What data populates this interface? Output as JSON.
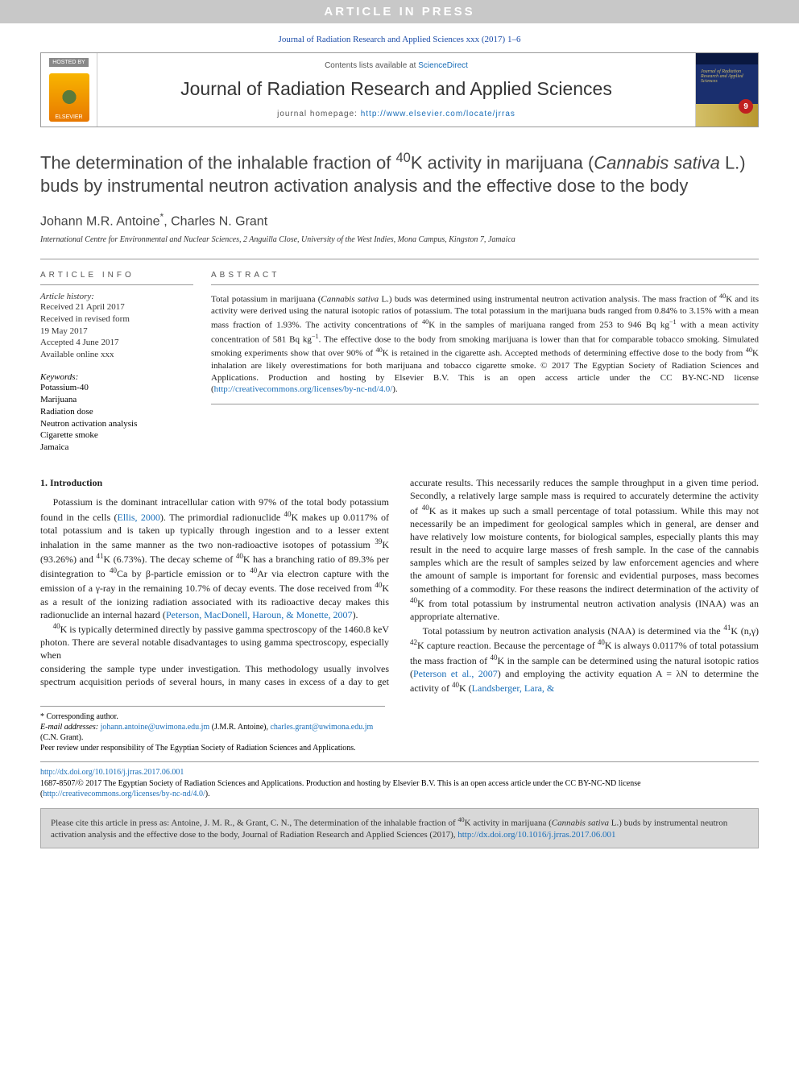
{
  "banner": "ARTICLE IN PRESS",
  "citation_top": "Journal of Radiation Research and Applied Sciences xxx (2017) 1–6",
  "header": {
    "hosted_label": "HOSTED BY",
    "elsevier": "ELSEVIER",
    "contents_prefix": "Contents lists available at ",
    "contents_link": "ScienceDirect",
    "journal": "Journal of Radiation Research and Applied Sciences",
    "homepage_prefix": "journal homepage: ",
    "homepage_url": "http://www.elsevier.com/locate/jrras",
    "cover_text": "Journal of Radiation Research and Applied Sciences",
    "cover_badge": "9"
  },
  "title_html": "The determination of the inhalable fraction of <sup>40</sup>K activity in marijuana (<i>Cannabis sativa</i> L.) buds by instrumental neutron activation analysis and the effective dose to the body",
  "authors_html": "Johann M.R. Antoine<sup>*</sup>, Charles N. Grant",
  "affiliation": "International Centre for Environmental and Nuclear Sciences, 2 Anguilla Close, University of the West Indies, Mona Campus, Kingston 7, Jamaica",
  "info": {
    "head": "ARTICLE INFO",
    "history_label": "Article history:",
    "history": [
      "Received 21 April 2017",
      "Received in revised form",
      "19 May 2017",
      "Accepted 4 June 2017",
      "Available online xxx"
    ],
    "keywords_label": "Keywords:",
    "keywords": [
      "Potassium-40",
      "Marijuana",
      "Radiation dose",
      "Neutron activation analysis",
      "Cigarette smoke",
      "Jamaica"
    ]
  },
  "abstract": {
    "head": "ABSTRACT",
    "text_html": "Total potassium in marijuana (<i>Cannabis sativa</i> L.) buds was determined using instrumental neutron activation analysis. The mass fraction of <sup>40</sup>K and its activity were derived using the natural isotopic ratios of potassium. The total potassium in the marijuana buds ranged from 0.84% to 3.15% with a mean mass fraction of 1.93%. The activity concentrations of <sup>40</sup>K in the samples of marijuana ranged from 253 to 946 Bq kg<sup>−1</sup> with a mean activity concentration of 581 Bq kg<sup>−1</sup>. The effective dose to the body from smoking marijuana is lower than that for comparable tobacco smoking. Simulated smoking experiments show that over 90% of <sup>40</sup>K is retained in the cigarette ash. Accepted methods of determining effective dose to the body from <sup>40</sup>K inhalation are likely overestimations for both marijuana and tobacco cigarette smoke. © 2017 The Egyptian Society of Radiation Sciences and Applications. Production and hosting by Elsevier B.V. This is an open access article under the CC BY-NC-ND license (<a href='#'>http://creativecommons.org/licenses/by-nc-nd/4.0/</a>)."
  },
  "body": {
    "section_head": "1. Introduction",
    "p1_html": "Potassium is the dominant intracellular cation with 97% of the total body potassium found in the cells (<a href='#'>Ellis, 2000</a>). The primordial radionuclide <sup>40</sup>K makes up 0.0117% of total potassium and is taken up typically through ingestion and to a lesser extent inhalation in the same manner as the two non-radioactive isotopes of potassium <sup>39</sup>K (93.26%) and <sup>41</sup>K (6.73%). The decay scheme of <sup>40</sup>K has a branching ratio of 89.3% per disintegration to <sup>40</sup>Ca by β-particle emission or to <sup>40</sup>Ar via electron capture with the emission of a γ-ray in the remaining 10.7% of decay events. The dose received from <sup>40</sup>K as a result of the ionizing radiation associated with its radioactive decay makes this radionuclide an internal hazard (<a href='#'>Peterson, MacDonell, Haroun, & Monette, 2007</a>).",
    "p2_html": "<sup>40</sup>K is typically determined directly by passive gamma spectroscopy of the 1460.8 keV photon. There are several notable disadvantages to using gamma spectroscopy, especially when",
    "p3_html": "considering the sample type under investigation. This methodology usually involves spectrum acquisition periods of several hours, in many cases in excess of a day to get accurate results. This necessarily reduces the sample throughput in a given time period. Secondly, a relatively large sample mass is required to accurately determine the activity of <sup>40</sup>K as it makes up such a small percentage of total potassium. While this may not necessarily be an impediment for geological samples which in general, are denser and have relatively low moisture contents, for biological samples, especially plants this may result in the need to acquire large masses of fresh sample. In the case of the cannabis samples which are the result of samples seized by law enforcement agencies and where the amount of sample is important for forensic and evidential purposes, mass becomes something of a commodity. For these reasons the indirect determination of the activity of <sup>40</sup>K from total potassium by instrumental neutron activation analysis (INAA) was an appropriate alternative.",
    "p4_html": "Total potassium by neutron activation analysis (NAA) is determined via the <sup>41</sup>K (n,γ) <sup>42</sup>K capture reaction. Because the percentage of <sup>40</sup>K is always 0.0117% of total potassium the mass fraction of <sup>40</sup>K in the sample can be determined using the natural isotopic ratios (<a href='#'>Peterson et al., 2007</a>) and employing the activity equation A = λN to determine the activity of <sup>40</sup>K (<a href='#'>Landsberger, Lara, &</a>"
  },
  "footnotes": {
    "corr": "* Corresponding author.",
    "email_label": "E-mail addresses:",
    "email1": "johann.antoine@uwimona.edu.jm",
    "email1_who": "(J.M.R. Antoine),",
    "email2": "charles.grant@uwimona.edu.jm",
    "email2_who": "(C.N. Grant).",
    "peer": "Peer review under responsibility of The Egyptian Society of Radiation Sciences and Applications."
  },
  "doi": {
    "link": "http://dx.doi.org/10.1016/j.jrras.2017.06.001",
    "issn_line_html": "1687-8507/© 2017 The Egyptian Society of Radiation Sciences and Applications. Production and hosting by Elsevier B.V. This is an open access article under the CC BY-NC-ND license (<a href='#'>http://creativecommons.org/licenses/by-nc-nd/4.0/</a>)."
  },
  "citebox_html": "Please cite this article in press as: Antoine, J. M. R., & Grant, C. N., The determination of the inhalable fraction of <sup>40</sup>K activity in marijuana (<i>Cannabis sativa</i> L.) buds by instrumental neutron activation analysis and the effective dose to the body, Journal of Radiation Research and Applied Sciences (2017), <a href='#'>http://dx.doi.org/10.1016/j.jrras.2017.06.001</a>",
  "colors": {
    "banner_bg": "#c8c8c8",
    "link": "#1a6eb8",
    "citebox_bg": "#d8d8d8"
  }
}
